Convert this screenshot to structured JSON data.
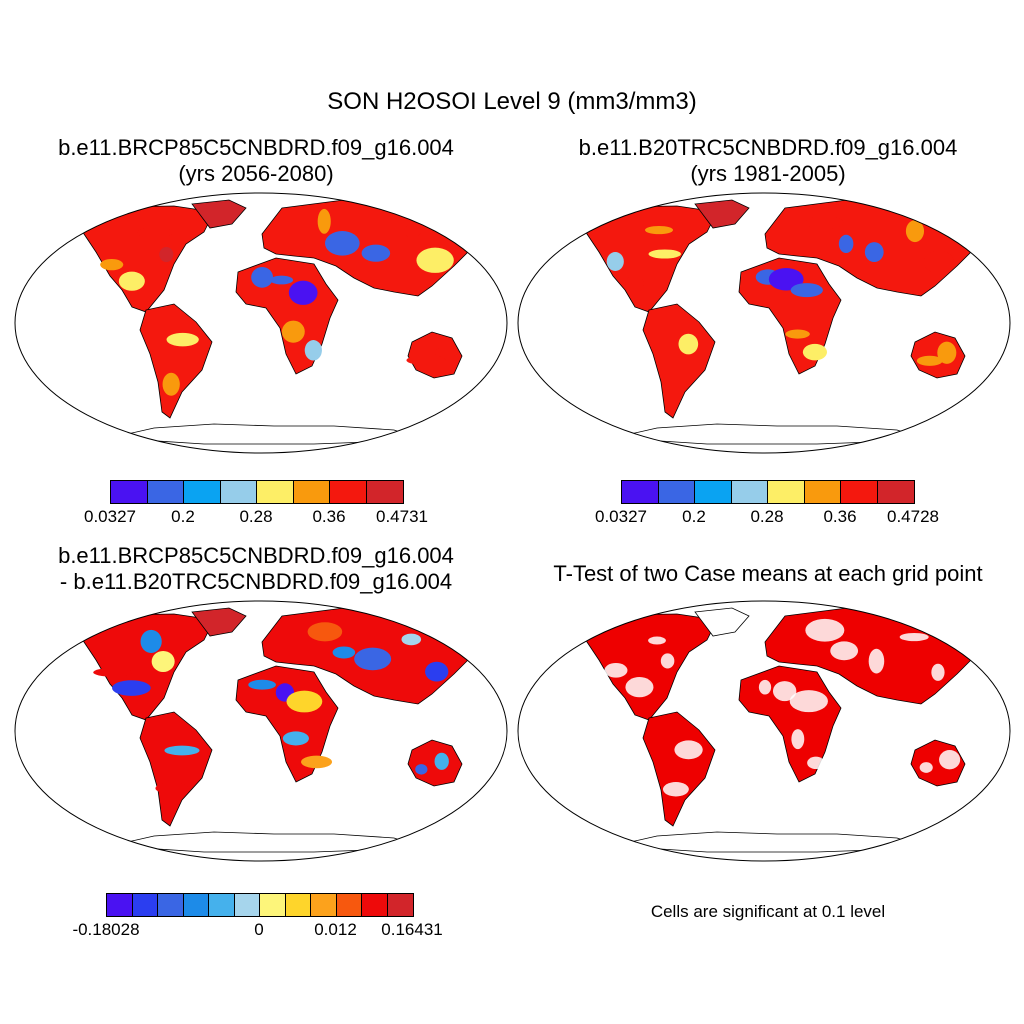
{
  "figure": {
    "title": "SON H2OSOI Level 9 (mm3/mm3)",
    "panels": [
      {
        "title_line1": "b.e11.BRCP85C5CNBDRD.f09_g16.004",
        "title_line2": "(yrs 2056-2080)",
        "colorbar": {
          "colors": [
            "#4a12f2",
            "#3a66e4",
            "#0aa3f2",
            "#96cdea",
            "#fdee66",
            "#f99a0d",
            "#f4180e",
            "#d2252a"
          ],
          "labels": [
            "0.0327",
            "0.2",
            "0.28",
            "0.36",
            "0.4731"
          ]
        }
      },
      {
        "title_line1": "b.e11.B20TRC5CNBDRD.f09_g16.004",
        "title_line2": "(yrs 1981-2005)",
        "colorbar": {
          "colors": [
            "#4a12f2",
            "#3a66e4",
            "#0aa3f2",
            "#96cdea",
            "#fdee66",
            "#f99a0d",
            "#f4180e",
            "#d2252a"
          ],
          "labels": [
            "0.0327",
            "0.2",
            "0.28",
            "0.36",
            "0.4728"
          ]
        }
      },
      {
        "title_line1": "b.e11.BRCP85C5CNBDRD.f09_g16.004",
        "title_line2": "- b.e11.B20TRC5CNBDRD.f09_g16.004",
        "colorbar": {
          "colors": [
            "#4a12f2",
            "#2b3ef0",
            "#3a66e4",
            "#1d8be8",
            "#45b1ec",
            "#a6d5ec",
            "#fdf57a",
            "#fed52b",
            "#fca21c",
            "#f7580e",
            "#ee0a0a",
            "#d2252a"
          ],
          "labels": [
            "-0.18028",
            "0",
            "0.012",
            "0.16431"
          ]
        }
      },
      {
        "title_line1": "T-Test of two Case means at each grid point",
        "note": "Cells are significant at 0.1 level",
        "significant_color": "#ee0000"
      }
    ]
  }
}
